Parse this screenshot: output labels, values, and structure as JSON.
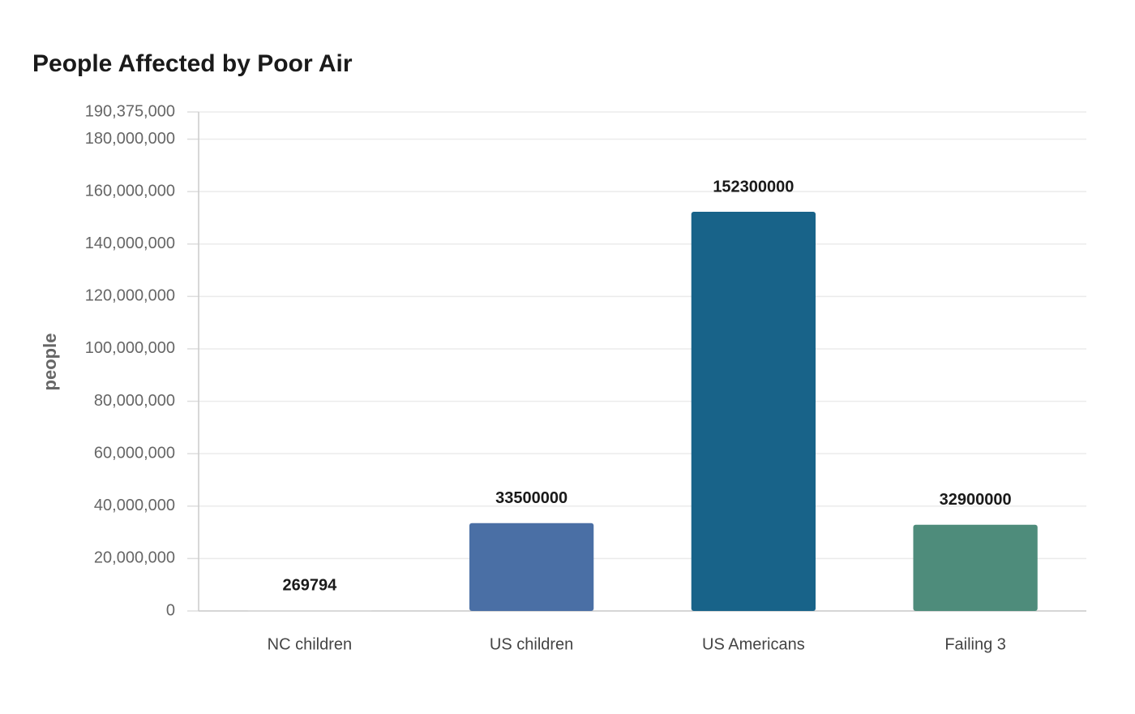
{
  "chart_data": {
    "type": "bar",
    "title": "People Affected by Poor Air",
    "y_label": "people",
    "categories": [
      "NC children",
      "US children",
      "US Americans",
      "Failing 3"
    ],
    "values": [
      269794,
      33500000,
      152300000,
      32900000
    ],
    "colors": [
      "#d9d9d9",
      "#4a6fa5",
      "#186389",
      "#4e8c7b"
    ],
    "ylim": [
      0,
      190375000
    ],
    "yticks": [
      0,
      {
        "value": 20000000,
        "label": "20,000,000"
      },
      {
        "value": 40000000,
        "label": "40,000,000"
      },
      {
        "value": 60000000,
        "label": "60,000,000"
      },
      {
        "value": 80000000,
        "label": "80,000,000"
      },
      {
        "value": 100000000,
        "label": "100,000,000"
      },
      {
        "value": 120000000,
        "label": "120,000,000"
      },
      {
        "value": 140000000,
        "label": "140,000,000"
      },
      {
        "value": 160000000,
        "label": "160,000,000"
      },
      {
        "value": 180000000,
        "label": "180,000,000"
      },
      {
        "value": 190375000,
        "label": "190,375,000"
      }
    ],
    "grid": true
  }
}
